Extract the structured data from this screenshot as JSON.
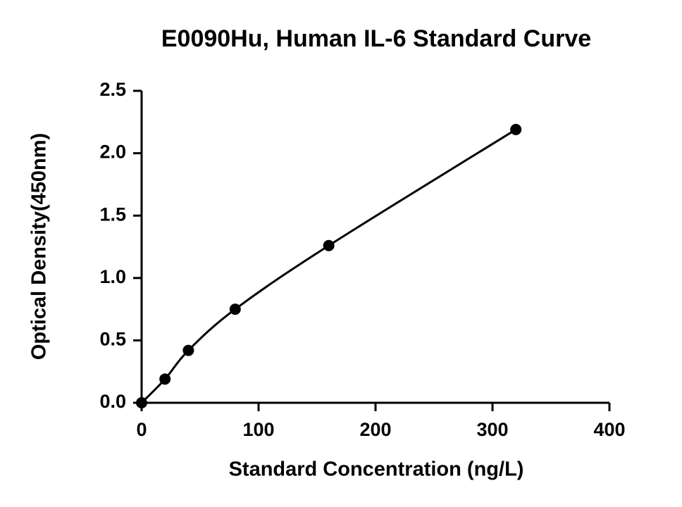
{
  "chart_data": {
    "type": "scatter",
    "title": "E0090Hu, Human IL-6 Standard Curve",
    "x_label": "Standard Concentration (ng/L)",
    "y_label": "Optical Density(450nm)",
    "x": [
      0,
      20,
      40,
      80,
      160,
      320
    ],
    "values": [
      0.0,
      0.19,
      0.42,
      0.75,
      1.26,
      2.19
    ],
    "color": "#000000",
    "fit_curve": true,
    "grid": false,
    "xlim": [
      0,
      400
    ],
    "xticks": [
      0,
      100,
      200,
      300,
      400
    ],
    "ylim": [
      0,
      2.5
    ],
    "yticks": [
      {
        "value": 0,
        "label": "0.0"
      },
      0.5,
      {
        "value": 1,
        "label": "1.0"
      },
      1.5,
      {
        "value": 2,
        "label": "2.0"
      },
      2.5
    ]
  }
}
